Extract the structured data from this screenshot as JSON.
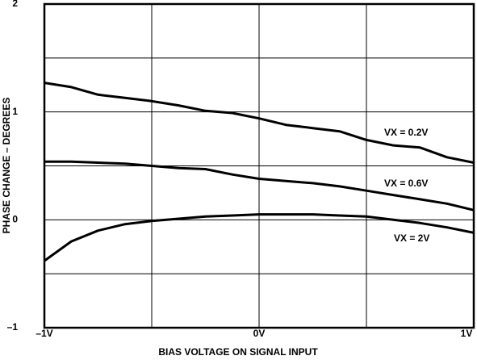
{
  "chart_data": {
    "type": "line",
    "x_label": "BIAS VOLTAGE ON SIGNAL INPUT",
    "y_label": "PHASE CHANGE – DEGREES",
    "x": [
      -1,
      -0.875,
      -0.75,
      -0.625,
      -0.5,
      -0.375,
      -0.25,
      -0.125,
      0,
      0.125,
      0.25,
      0.375,
      0.5,
      0.625,
      0.75,
      0.875,
      1
    ],
    "series": [
      {
        "name": "VX = 0.2V",
        "color": "#000000",
        "values": [
          1.27,
          1.23,
          1.16,
          1.13,
          1.1,
          1.06,
          1.01,
          0.99,
          0.94,
          0.88,
          0.85,
          0.82,
          0.74,
          0.69,
          0.67,
          0.58,
          0.53
        ]
      },
      {
        "name": "VX = 0.6V",
        "color": "#000000",
        "values": [
          0.54,
          0.54,
          0.53,
          0.52,
          0.5,
          0.48,
          0.47,
          0.42,
          0.38,
          0.36,
          0.34,
          0.31,
          0.27,
          0.23,
          0.19,
          0.15,
          0.09
        ]
      },
      {
        "name": "VX = 2V",
        "color": "#000000",
        "values": [
          -0.38,
          -0.2,
          -0.1,
          -0.04,
          -0.01,
          0.01,
          0.03,
          0.04,
          0.05,
          0.05,
          0.05,
          0.04,
          0.03,
          0,
          -0.03,
          -0.07,
          -0.12
        ]
      }
    ],
    "xlim": [
      -1,
      1
    ],
    "xticks": [
      {
        "value": -1,
        "label": "–1V"
      },
      {
        "value": -0.5,
        "label": null
      },
      {
        "value": 0,
        "label": "0V"
      },
      {
        "value": 0.5,
        "label": null
      },
      {
        "value": 1,
        "label": "1V"
      }
    ],
    "ylim": [
      -1,
      2
    ],
    "yticks": [
      {
        "value": -1,
        "label": "–1"
      },
      {
        "value": -0.5,
        "label": null
      },
      0,
      {
        "value": 0.5,
        "label": null
      },
      1,
      {
        "value": 1.5,
        "label": null
      },
      2
    ],
    "grid": true
  }
}
